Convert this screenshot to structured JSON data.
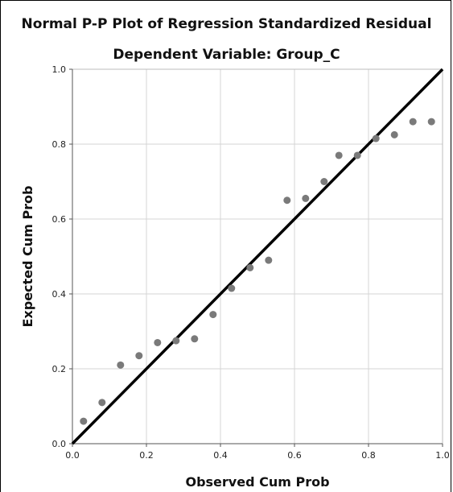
{
  "chart_data": {
    "type": "scatter",
    "title": "Normal P-P Plot of Regression Standardized Residual",
    "subtitle": "Dependent Variable: Group_C",
    "xlabel": "Observed Cum Prob",
    "ylabel": "Expected Cum Prob",
    "xlim": [
      0.0,
      1.0
    ],
    "ylim": [
      0.0,
      1.0
    ],
    "xticks": [
      "0.0",
      "0.2",
      "0.4",
      "0.6",
      "0.8",
      "1.0"
    ],
    "yticks": [
      "0.0",
      "0.2",
      "0.4",
      "0.6",
      "0.8",
      "1.0"
    ],
    "grid": true,
    "reference_line": {
      "from": [
        0,
        0
      ],
      "to": [
        1,
        1
      ]
    },
    "point_color": "#7a7a7a",
    "line_color": "#000000",
    "grid_color": "#d4d4d4",
    "x": [
      0.03,
      0.08,
      0.13,
      0.18,
      0.23,
      0.28,
      0.33,
      0.38,
      0.43,
      0.48,
      0.53,
      0.58,
      0.63,
      0.68,
      0.72,
      0.77,
      0.82,
      0.87,
      0.92,
      0.97
    ],
    "y": [
      0.06,
      0.11,
      0.21,
      0.235,
      0.27,
      0.275,
      0.28,
      0.345,
      0.415,
      0.47,
      0.49,
      0.65,
      0.655,
      0.7,
      0.77,
      0.77,
      0.815,
      0.825,
      0.86,
      0.86
    ]
  }
}
